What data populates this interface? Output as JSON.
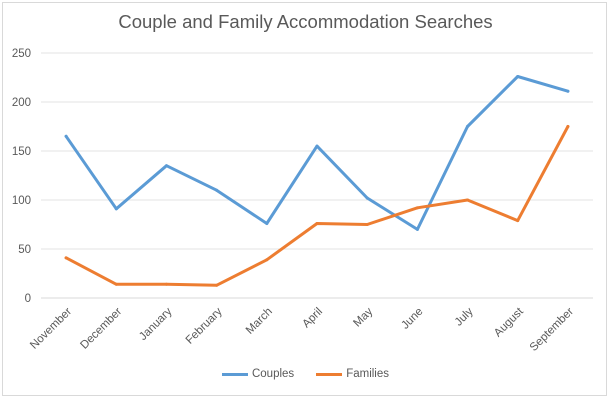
{
  "chart_data": {
    "type": "line",
    "title": "Couple and Family Accommodation Searches",
    "categories": [
      "November",
      "December",
      "January",
      "February",
      "March",
      "April",
      "May",
      "June",
      "July",
      "August",
      "September"
    ],
    "series": [
      {
        "name": "Couples",
        "color": "#5b9bd5",
        "values": [
          165,
          91,
          135,
          110,
          76,
          155,
          102,
          70,
          175,
          226,
          211
        ]
      },
      {
        "name": "Families",
        "color": "#ed7d31",
        "values": [
          41,
          14,
          14,
          13,
          39,
          76,
          75,
          92,
          100,
          79,
          175
        ]
      }
    ],
    "ylim": [
      0,
      250
    ],
    "yticks": [
      0,
      50,
      100,
      150,
      200,
      250
    ],
    "grid": true,
    "legend": "bottom"
  }
}
